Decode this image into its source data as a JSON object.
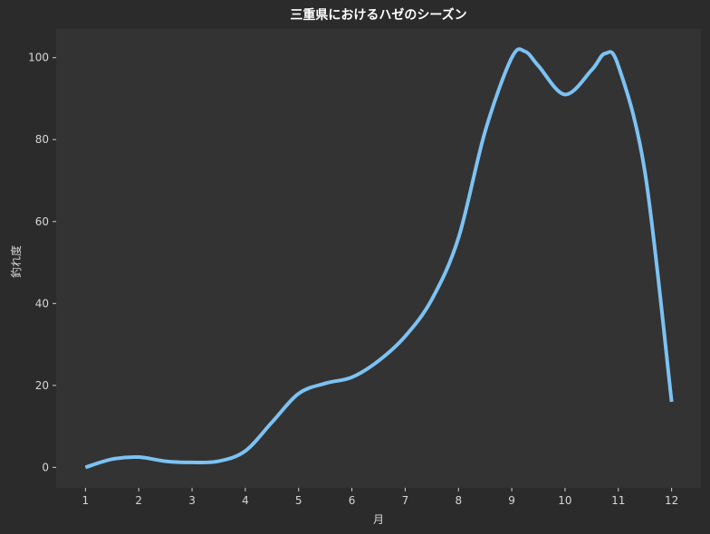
{
  "chart_data": {
    "type": "line",
    "title": "三重県におけるハゼのシーズン",
    "xlabel": "月",
    "ylabel": "釣れ度",
    "xlim": [
      0.45,
      12.55
    ],
    "ylim": [
      -5,
      107
    ],
    "x_ticks": [
      1,
      2,
      3,
      4,
      5,
      6,
      7,
      8,
      9,
      10,
      11,
      12
    ],
    "y_ticks": [
      0,
      20,
      40,
      60,
      80,
      100
    ],
    "grid": false,
    "series": [
      {
        "color": "#7cc2f3",
        "x": [
          1,
          1.5,
          2,
          2.5,
          3,
          3.5,
          4,
          4.5,
          5,
          5.5,
          6,
          6.5,
          7,
          7.5,
          8,
          8.5,
          9,
          9.25,
          9.5,
          10,
          10.5,
          10.75,
          11,
          11.5,
          12
        ],
        "y": [
          0,
          2,
          2.5,
          1.5,
          1.2,
          1.5,
          4,
          11,
          18,
          20.5,
          22,
          26,
          32,
          41,
          56,
          82,
          100,
          101.5,
          98,
          91,
          97,
          101,
          98,
          72,
          16
        ]
      }
    ]
  },
  "colors": {
    "background": "#2b2b2b",
    "plot_background": "#333333",
    "text": "#d6d6d6",
    "title": "#ffffff"
  }
}
